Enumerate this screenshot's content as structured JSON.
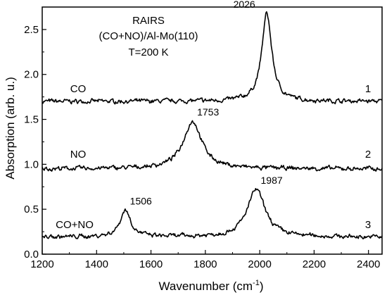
{
  "chart_data": {
    "type": "line",
    "title_lines": [
      "RAIRS",
      "(CO+NO)/Al-Mo(110)",
      "T=200 K"
    ],
    "xlabel": "Wavenumber (cm",
    "xlabel_sup": "-1",
    "xlabel_end": ")",
    "ylabel": "Absorption (arb. u.)",
    "xlim": [
      1200,
      2450
    ],
    "ylim": [
      0,
      2.75
    ],
    "xticks": [
      1200,
      1400,
      1600,
      1800,
      2000,
      2200,
      2400
    ],
    "yticks": [
      0.0,
      0.5,
      1.0,
      1.5,
      2.0,
      2.5
    ],
    "xtick_labels": [
      "1200",
      "1400",
      "1600",
      "1800",
      "2000",
      "2200",
      "2400"
    ],
    "ytick_labels": [
      "0.0",
      "0.5",
      "1.0",
      "1.5",
      "2.0",
      "2.5"
    ],
    "grid": false,
    "series": [
      {
        "name": "CO",
        "number": "1",
        "baseline": 1.7,
        "peaks": [
          {
            "x": 2026,
            "height": 0.98,
            "width": 28
          }
        ],
        "peak_labels": [
          {
            "x": 2026,
            "text": "2026"
          }
        ]
      },
      {
        "name": "NO",
        "number": "2",
        "baseline": 0.95,
        "peaks": [
          {
            "x": 1753,
            "height": 0.53,
            "width": 52
          }
        ],
        "peak_labels": [
          {
            "x": 1753,
            "text": "1753"
          }
        ]
      },
      {
        "name": "CO+NO",
        "number": "3",
        "baseline": 0.19,
        "peaks": [
          {
            "x": 1506,
            "height": 0.3,
            "width": 30
          },
          {
            "x": 1987,
            "height": 0.53,
            "width": 50
          }
        ],
        "peak_labels": [
          {
            "x": 1506,
            "text": "1506"
          },
          {
            "x": 1987,
            "text": "1987"
          }
        ]
      }
    ]
  }
}
